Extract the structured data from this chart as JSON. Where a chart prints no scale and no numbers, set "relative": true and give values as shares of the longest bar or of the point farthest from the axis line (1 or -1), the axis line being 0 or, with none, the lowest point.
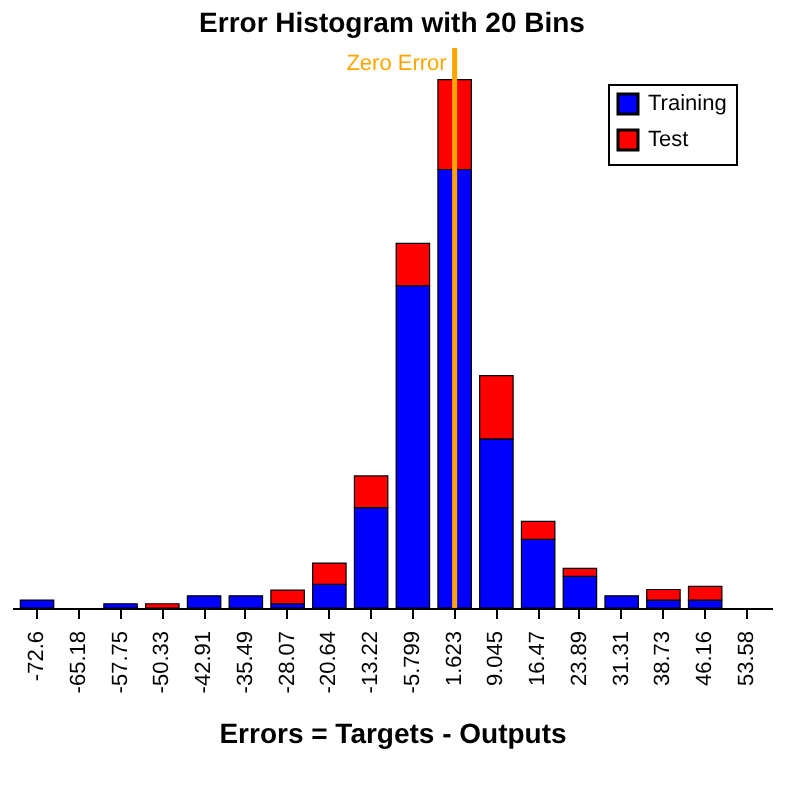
{
  "chart_data": {
    "type": "bar",
    "title": "Error Histogram with 20 Bins",
    "xlabel": "Errors = Targets - Outputs",
    "relative": true,
    "stacked": true,
    "legend": "top right",
    "grid": false,
    "categories": [
      "-72.6",
      "-65.18",
      "-57.75",
      "-50.33",
      "-42.91",
      "-35.49",
      "-28.07",
      "-20.64",
      "-13.22",
      "-5.799",
      "1.623",
      "9.045",
      "16.47",
      "23.89",
      "31.31",
      "38.73",
      "46.16",
      "53.58"
    ],
    "series": [
      {
        "name": "Training",
        "color": "#0000ff",
        "values": [
          0.015,
          0,
          0.008,
          0,
          0.023,
          0.023,
          0.008,
          0.045,
          0.19,
          0.61,
          0.83,
          0.32,
          0.13,
          0.06,
          0.023,
          0.015,
          0.015,
          0
        ]
      },
      {
        "name": "Test",
        "color": "#ff0000",
        "values": [
          0,
          0,
          0,
          0.008,
          0,
          0,
          0.026,
          0.04,
          0.06,
          0.08,
          0.17,
          0.12,
          0.034,
          0.015,
          0,
          0.02,
          0.026,
          0
        ]
      }
    ],
    "ref_lines": [
      {
        "axis": "x",
        "value": "1.623",
        "label": "Zero Error",
        "color": "#ffa500"
      }
    ]
  }
}
